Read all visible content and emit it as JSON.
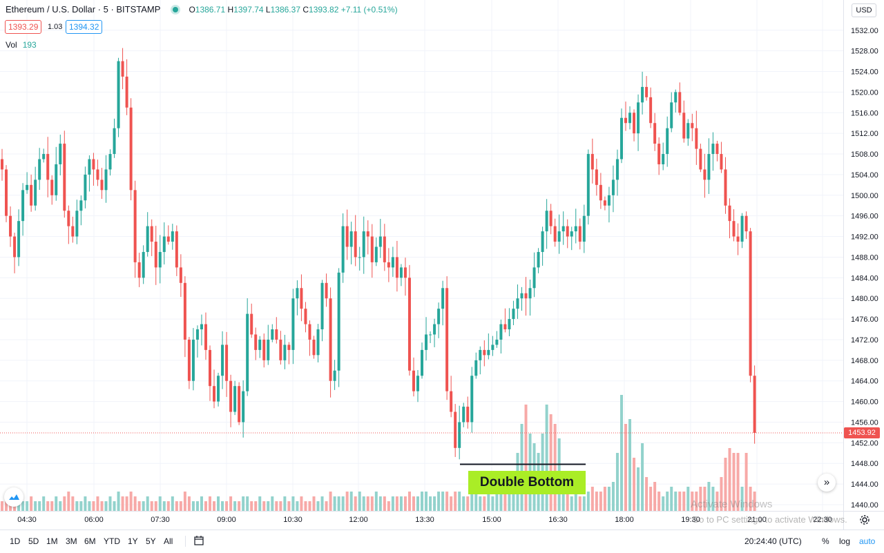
{
  "legend": {
    "title": "Ethereum / U.S. Dollar · 5 · BITSTAMP",
    "open_label": "O",
    "open": "1386.71",
    "high_label": "H",
    "high": "1397.74",
    "low_label": "L",
    "low": "1386.37",
    "close_label": "C",
    "close": "1393.82",
    "change": "+7.11 (+0.51%)",
    "bid": "1393.29",
    "spread": "1.03",
    "ask": "1394.32",
    "vol_label": "Vol",
    "vol_value": "193"
  },
  "currency": "USD",
  "last_price_label": "1453.92",
  "annotation": "Double Bottom",
  "watermark": {
    "line1": "Activate Windows",
    "line2": "Go to PC settings to activate Windows."
  },
  "clock": "20:24:40 (UTC)",
  "ranges": [
    "1D",
    "5D",
    "1M",
    "3M",
    "6M",
    "YTD",
    "1Y",
    "5Y",
    "All"
  ],
  "scale_options": {
    "percent": "%",
    "log": "log",
    "auto": "auto"
  },
  "colors": {
    "up": "#26a69a",
    "down": "#ef5350",
    "up_volume": "#92d2cc",
    "down_volume": "#f7a9a7",
    "annotation_bg": "#aaed26"
  },
  "chart_data": {
    "type": "candlestick",
    "interval_minutes": 5,
    "ylim": [
      1438,
      1536
    ],
    "y_ticks": [
      1440,
      1444,
      1448,
      1452,
      1456,
      1460,
      1464,
      1468,
      1472,
      1476,
      1480,
      1484,
      1488,
      1492,
      1496,
      1500,
      1504,
      1508,
      1512,
      1516,
      1520,
      1524,
      1528,
      1532
    ],
    "x_ticks": [
      "04:30",
      "06:00",
      "07:30",
      "09:00",
      "10:30",
      "12:00",
      "13:30",
      "15:00",
      "16:30",
      "18:00",
      "19:30",
      "21:00",
      "22:30"
    ],
    "last_price": 1453.92,
    "close": [
      1505,
      1496,
      1492,
      1488,
      1495,
      1501,
      1502,
      1498,
      1503,
      1507,
      1508,
      1503,
      1500,
      1506,
      1510,
      1497,
      1494,
      1492,
      1497,
      1499,
      1504,
      1507,
      1505,
      1503,
      1501,
      1505,
      1508,
      1513,
      1526,
      1523,
      1517,
      1501,
      1487,
      1484,
      1489,
      1494,
      1491,
      1486,
      1489,
      1492,
      1491,
      1493,
      1486,
      1483,
      1472,
      1464,
      1472,
      1474,
      1475,
      1470,
      1463,
      1460,
      1465,
      1471,
      1464,
      1458,
      1463,
      1456,
      1462,
      1477,
      1473,
      1470,
      1472,
      1468,
      1472,
      1474,
      1472,
      1468,
      1471,
      1470,
      1480,
      1482,
      1478,
      1475,
      1472,
      1469,
      1474,
      1483,
      1480,
      1464,
      1466,
      1485,
      1494,
      1490,
      1493,
      1488,
      1488,
      1493,
      1492,
      1487,
      1490,
      1492,
      1487,
      1486,
      1488,
      1484,
      1486,
      1484,
      1466,
      1462,
      1465,
      1470,
      1473,
      1473,
      1475,
      1478,
      1482,
      1462,
      1458,
      1451,
      1456,
      1459,
      1456,
      1465,
      1468,
      1470,
      1469,
      1470,
      1471,
      1472,
      1475,
      1474,
      1476,
      1478,
      1480,
      1481,
      1480,
      1482,
      1486,
      1489,
      1493,
      1497,
      1494,
      1491,
      1493,
      1494,
      1492,
      1493,
      1494,
      1491,
      1496,
      1508,
      1505,
      1502,
      1499,
      1498,
      1500,
      1503,
      1507,
      1515,
      1514,
      1516,
      1512,
      1518,
      1521,
      1519,
      1514,
      1510,
      1506,
      1508,
      1513,
      1518,
      1520,
      1516,
      1511,
      1514,
      1513,
      1509,
      1505,
      1503,
      1508,
      1510,
      1508,
      1505,
      1498,
      1495,
      1492,
      1491,
      1496,
      1493,
      1465,
      1453.92
    ],
    "volume": [
      2,
      3,
      2,
      2,
      3,
      2,
      2,
      3,
      2,
      2,
      3,
      2,
      2,
      3,
      2,
      3,
      4,
      3,
      2,
      2,
      3,
      2,
      2,
      3,
      2,
      2,
      3,
      2,
      4,
      3,
      3,
      4,
      3,
      2,
      2,
      3,
      2,
      2,
      3,
      2,
      2,
      3,
      2,
      2,
      4,
      3,
      2,
      2,
      3,
      2,
      3,
      2,
      3,
      2,
      2,
      3,
      2,
      2,
      3,
      3,
      2,
      2,
      3,
      2,
      2,
      3,
      2,
      2,
      3,
      2,
      3,
      2,
      3,
      2,
      2,
      3,
      2,
      3,
      2,
      4,
      3,
      3,
      3,
      4,
      4,
      3,
      4,
      3,
      3,
      3,
      4,
      3,
      3,
      2,
      3,
      3,
      3,
      3,
      4,
      3,
      3,
      4,
      4,
      3,
      3,
      4,
      4,
      4,
      3,
      4,
      4,
      3,
      3,
      4,
      4,
      3,
      3,
      4,
      3,
      4,
      4,
      5,
      6,
      8,
      12,
      18,
      22,
      16,
      14,
      12,
      16,
      22,
      20,
      18,
      15,
      4,
      4,
      3,
      4,
      3,
      3,
      4,
      5,
      4,
      4,
      5,
      5,
      6,
      12,
      24,
      18,
      19,
      11,
      9,
      14,
      7,
      5,
      6,
      4,
      3,
      4,
      5,
      4,
      4,
      4,
      5,
      4,
      4,
      5,
      5,
      6,
      5,
      4,
      7,
      11,
      13,
      12,
      12,
      5,
      12,
      5,
      4
    ]
  }
}
